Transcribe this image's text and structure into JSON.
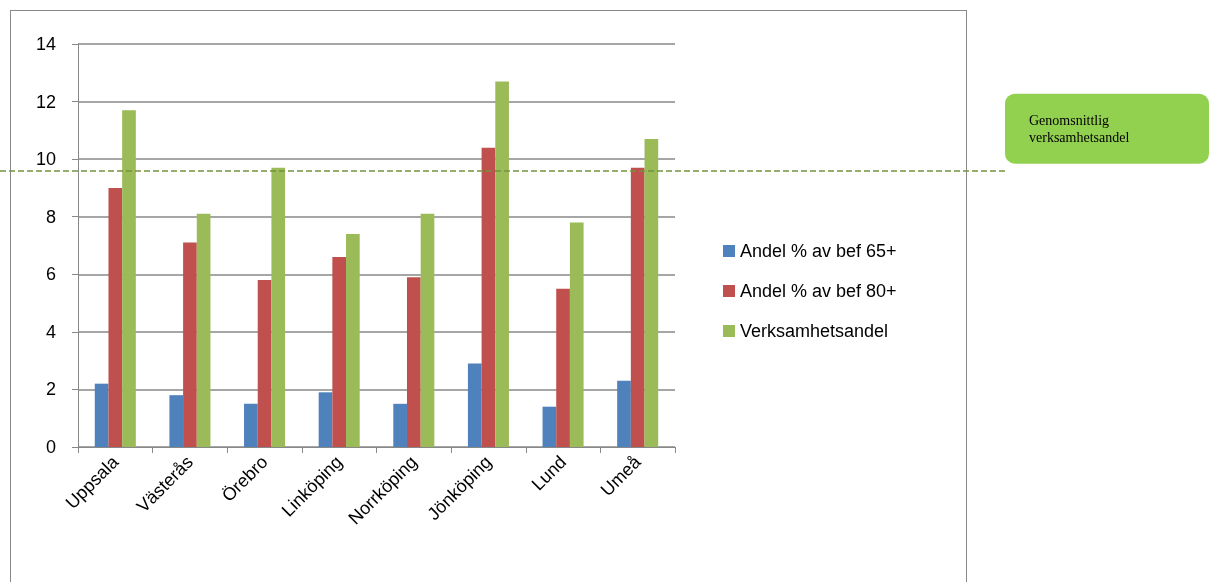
{
  "chart_data": {
    "type": "bar",
    "categories": [
      "Uppsala",
      "Västerås",
      "Örebro",
      "Linköping",
      "Norrköping",
      "Jönköping",
      "Lund",
      "Umeå"
    ],
    "series": [
      {
        "name": "Andel % av bef 65+",
        "color": "#4f81bd",
        "values": [
          2.2,
          1.8,
          1.5,
          1.9,
          1.5,
          2.9,
          1.4,
          2.3
        ]
      },
      {
        "name": "Andel % av bef 80+",
        "color": "#c0504d",
        "values": [
          9.0,
          7.1,
          5.8,
          6.6,
          5.9,
          10.4,
          5.5,
          9.7
        ]
      },
      {
        "name": "Verksamhetsandel",
        "color": "#9bbb59",
        "values": [
          11.7,
          8.1,
          9.7,
          7.4,
          8.1,
          12.7,
          7.8,
          10.7
        ]
      }
    ],
    "ylim": [
      0,
      14
    ],
    "yticks": [
      0,
      2,
      4,
      6,
      8,
      10,
      12,
      14
    ],
    "grid": "y",
    "legend": "right",
    "ref_lines": [
      {
        "axis": "y",
        "value": 9.6,
        "label": "Genomsnittlig verksamhetsandel",
        "color": "#76923c",
        "line_style": "dashed"
      }
    ]
  }
}
